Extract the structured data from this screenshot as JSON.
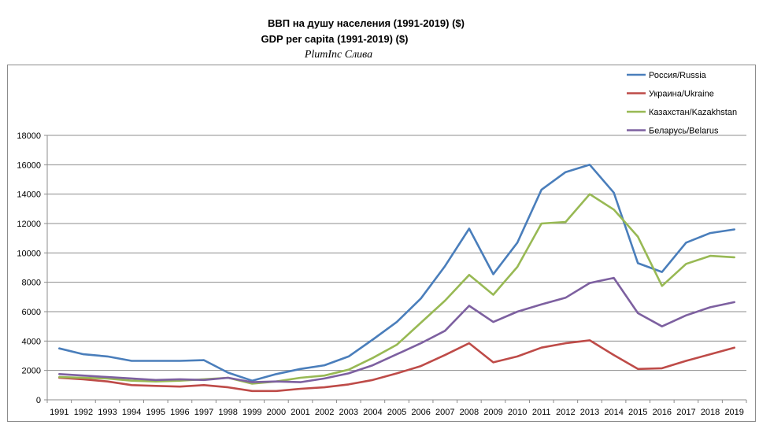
{
  "chart_data": {
    "type": "line",
    "title": "ВВП на душу населения (1991-2019) ($)",
    "subtitle": "GDP per capita (1991-2019) ($)",
    "credit": "PlumInc Слива",
    "xlabel": "",
    "ylabel": "",
    "ylim": [
      0,
      18000
    ],
    "yticks": [
      "0",
      "2000",
      "4000",
      "6000",
      "8000",
      "10000",
      "12000",
      "14000",
      "16000",
      "18000"
    ],
    "grid": true,
    "legend_position": "top-right",
    "categories": [
      "1991",
      "1992",
      "1993",
      "1994",
      "1995",
      "1996",
      "1997",
      "1998",
      "1999",
      "2000",
      "2001",
      "2002",
      "2003",
      "2004",
      "2005",
      "2006",
      "2007",
      "2008",
      "2009",
      "2010",
      "2011",
      "2012",
      "2013",
      "2014",
      "2015",
      "2016",
      "2017",
      "2018",
      "2019"
    ],
    "series": [
      {
        "name": "Россия/Russia",
        "color": "#4a7ebb",
        "values": [
          3500,
          3100,
          2950,
          2650,
          2650,
          2650,
          2700,
          1850,
          1300,
          1750,
          2100,
          2350,
          2950,
          4100,
          5300,
          6900,
          9100,
          11650,
          8550,
          10700,
          14300,
          15500,
          16000,
          14100,
          9300,
          8700,
          10700,
          11350,
          11600
        ]
      },
      {
        "name": "Украина/Ukraine",
        "color": "#be4b48",
        "values": [
          1500,
          1400,
          1250,
          1000,
          950,
          900,
          1000,
          850,
          600,
          600,
          750,
          850,
          1050,
          1350,
          1800,
          2300,
          3050,
          3850,
          2550,
          2950,
          3550,
          3850,
          4050,
          3050,
          2100,
          2150,
          2650,
          3100,
          3550
        ]
      },
      {
        "name": "Казахстан/Kazakhstan",
        "color": "#98b954",
        "values": [
          1550,
          1500,
          1450,
          1300,
          1250,
          1300,
          1400,
          1500,
          1100,
          1250,
          1500,
          1650,
          2050,
          2850,
          3750,
          5250,
          6750,
          8500,
          7150,
          9050,
          12000,
          12100,
          14000,
          12950,
          11100,
          7750,
          9250,
          9800,
          9700
        ]
      },
      {
        "name": "Беларусь/Belarus",
        "color": "#7d60a0",
        "values": [
          1750,
          1650,
          1550,
          1450,
          1350,
          1400,
          1350,
          1500,
          1200,
          1250,
          1200,
          1450,
          1800,
          2350,
          3100,
          3850,
          4700,
          6400,
          5300,
          6000,
          6500,
          6950,
          7950,
          8300,
          5900,
          5000,
          5750,
          6300,
          6650
        ]
      }
    ]
  }
}
